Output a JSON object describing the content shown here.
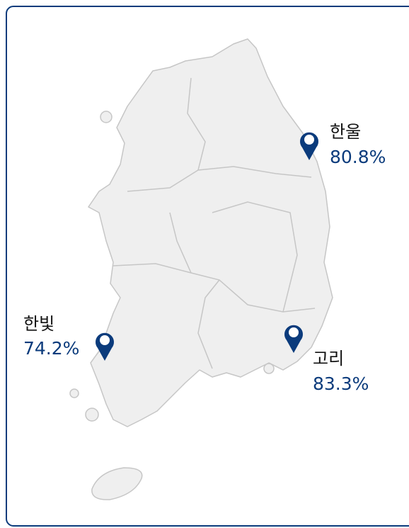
{
  "markers": [
    {
      "name": "한울",
      "value": "80.8%"
    },
    {
      "name": "한빛",
      "value": "74.2%"
    },
    {
      "name": "고리",
      "value": "83.3%"
    }
  ]
}
